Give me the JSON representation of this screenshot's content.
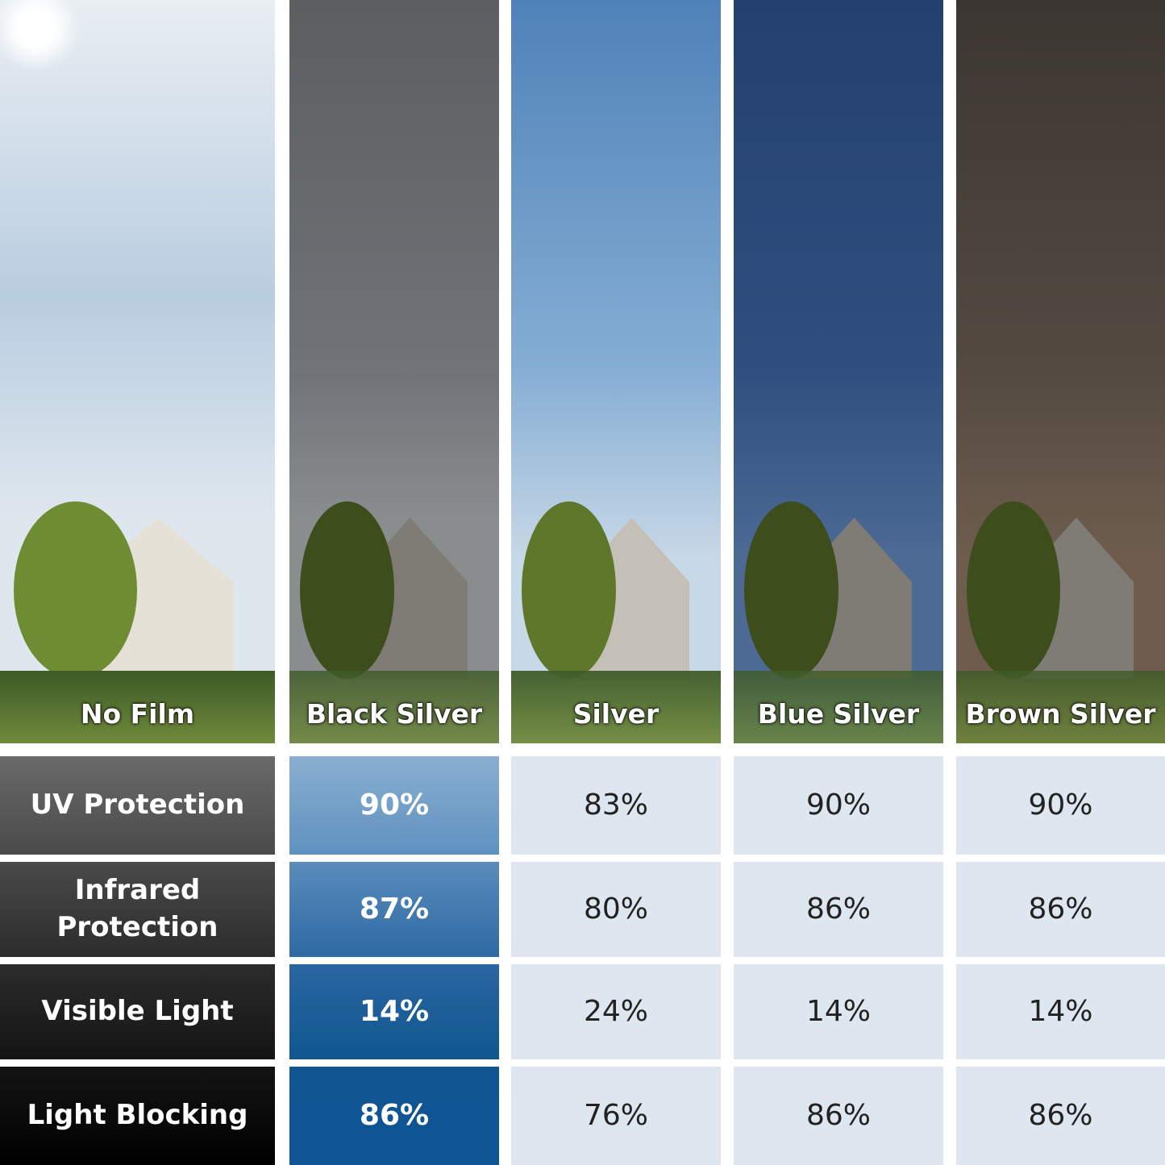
{
  "columns": [
    {
      "label": "No Film",
      "tint": "none"
    },
    {
      "label": "Black Silver",
      "tint": "#3a3a3a"
    },
    {
      "label": "Silver",
      "tint": "#6f9bc8"
    },
    {
      "label": "Blue Silver",
      "tint": "#24406f"
    },
    {
      "label": "Brown Silver",
      "tint": "#3d3530"
    }
  ],
  "rows": [
    {
      "label": "UV Protection",
      "values": [
        "90%",
        "83%",
        "90%",
        "90%"
      ]
    },
    {
      "label": "Infrared Protection",
      "values": [
        "87%",
        "80%",
        "86%",
        "86%"
      ]
    },
    {
      "label": "Visible Light",
      "values": [
        "14%",
        "24%",
        "14%",
        "14%"
      ]
    },
    {
      "label": "Light Blocking",
      "values": [
        "86%",
        "76%",
        "86%",
        "86%"
      ]
    }
  ],
  "colors": {
    "highlight_top": "#8aafd0",
    "highlight_bottom": "#0e5594",
    "cell_bg": "#dee6ef",
    "row_head_top": "#6a6a6a",
    "row_head_bottom": "#000000"
  }
}
